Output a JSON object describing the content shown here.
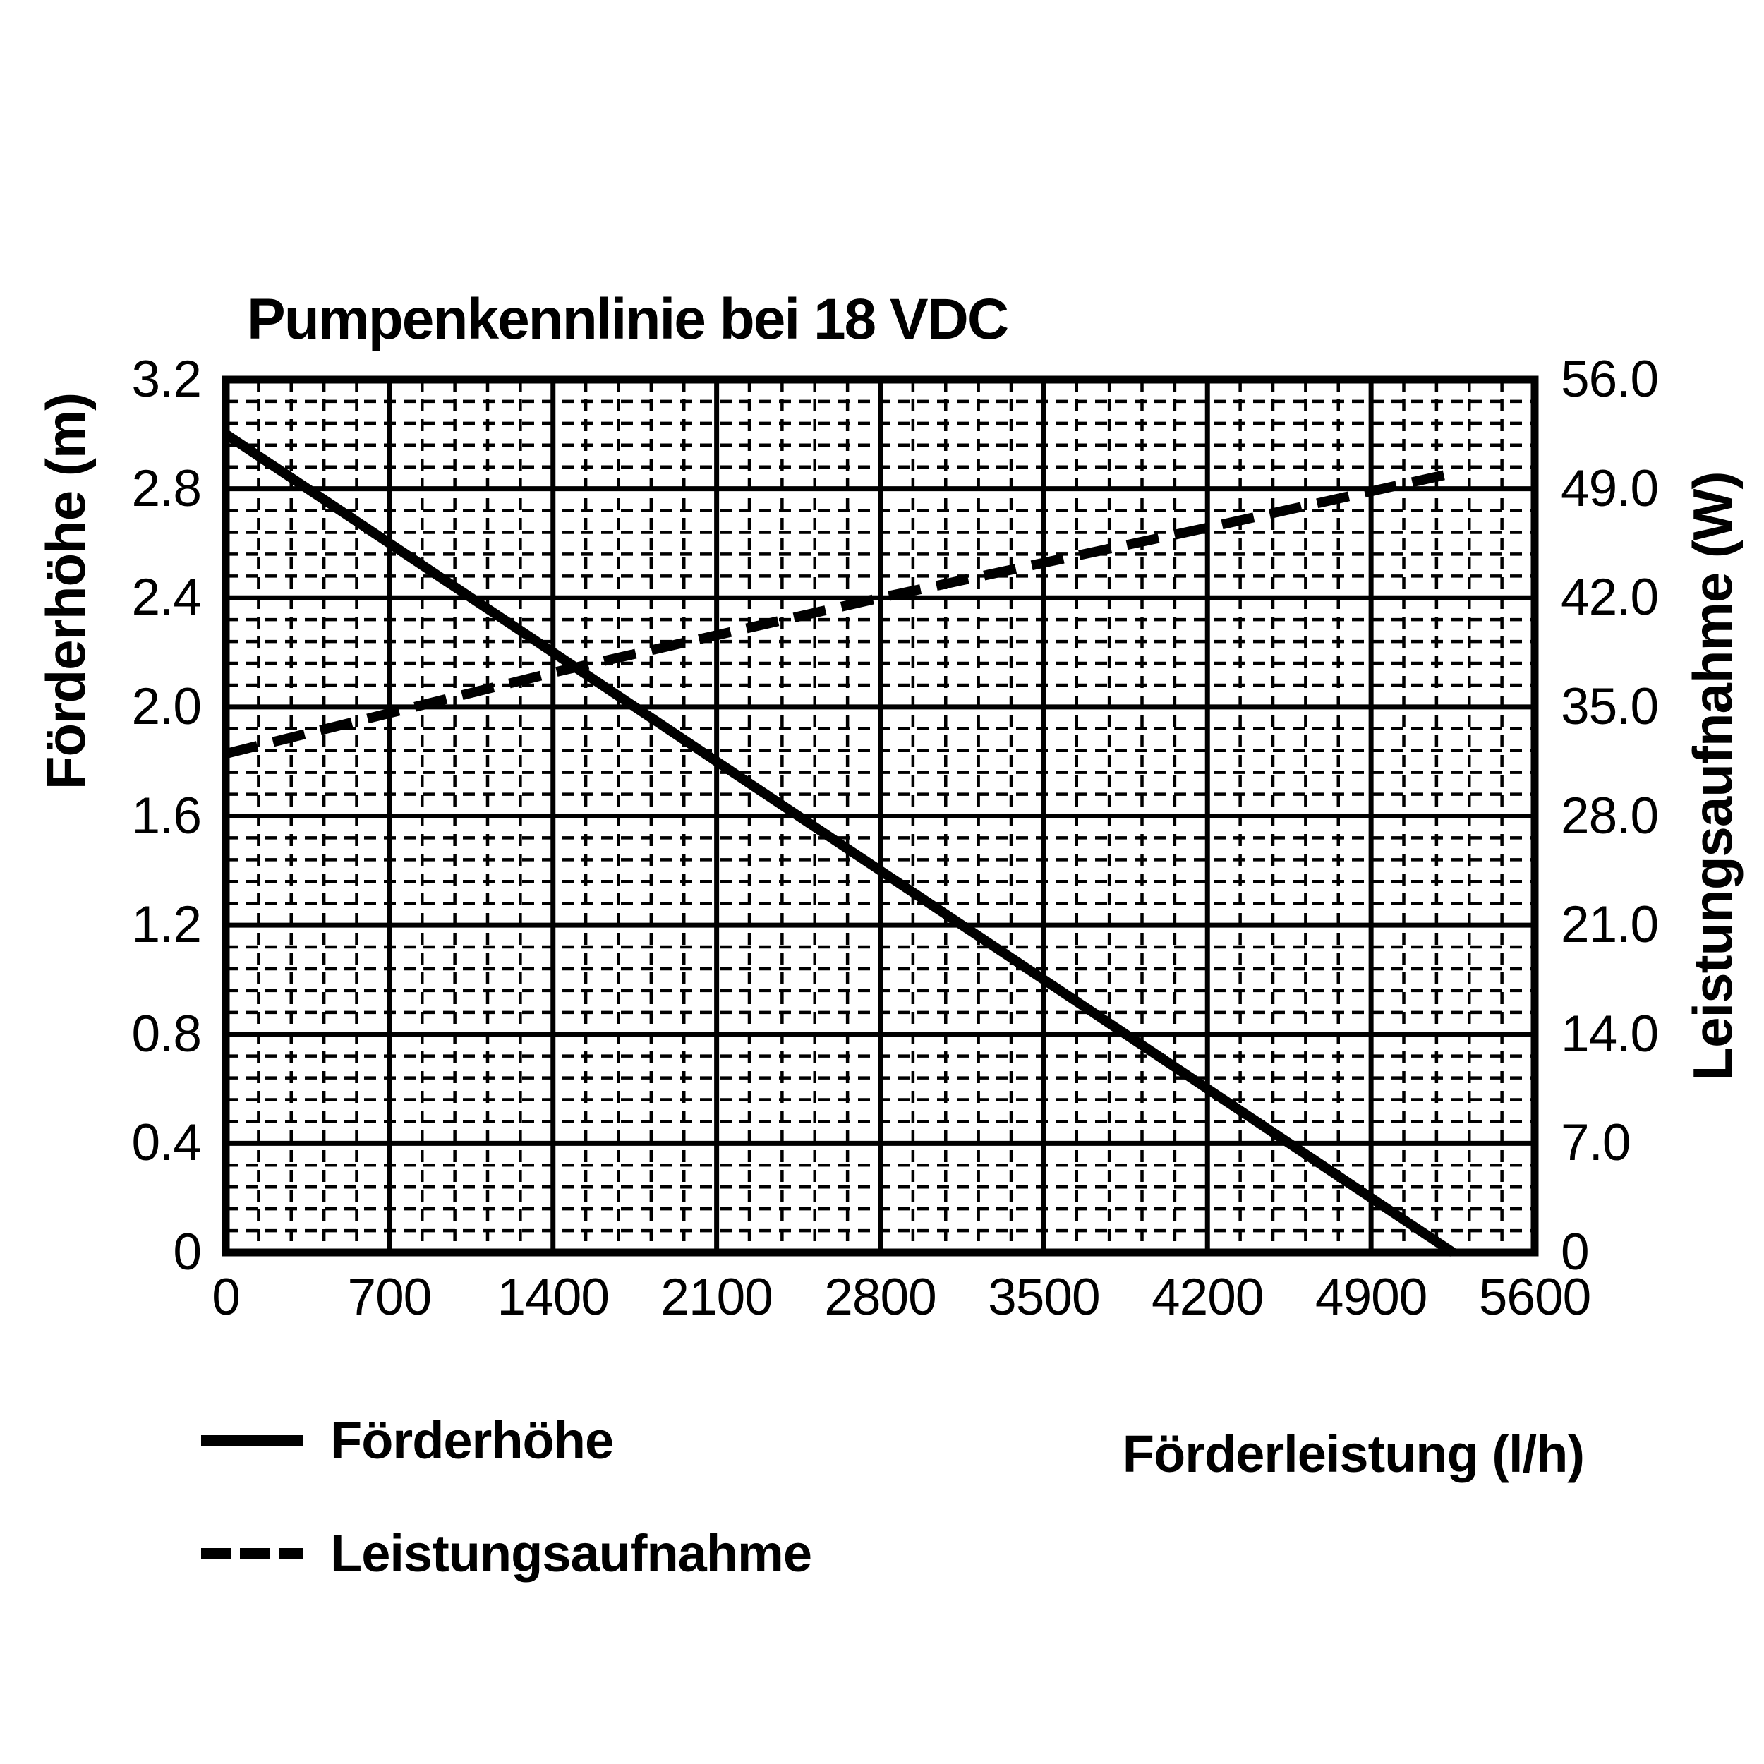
{
  "page": {
    "background": "#ffffff",
    "foreground": "#000000"
  },
  "chart": {
    "title": "Pumpenkennlinie bei 18 VDC",
    "x_axis_title": "Förderleistung (l/h)",
    "y_left_axis_title": "Förderhöhe (m)",
    "y_right_axis_title": "Leistungsaufnahme (W)"
  },
  "legend": {
    "items": [
      {
        "label": "Förderhöhe",
        "line_style": "solid"
      },
      {
        "label": "Leistungsaufnahme",
        "line_style": "dashed"
      }
    ]
  },
  "chart_data": {
    "type": "line",
    "title": "Pumpenkennlinie bei 18 VDC",
    "xlabel": "Förderleistung (l/h)",
    "x_range": [
      0,
      5600
    ],
    "x_ticks": [
      "0",
      "700",
      "1400",
      "2100",
      "2800",
      "3500",
      "4200",
      "4900",
      "5600"
    ],
    "x_minor_divisions": 5,
    "y_left": {
      "label": "Förderhöhe (m)",
      "unit": "m",
      "range": [
        0,
        3.2
      ],
      "ticks": [
        "3.2",
        "2.8",
        "2.4",
        "2.0",
        "1.6",
        "1.2",
        "0.8",
        "0.4",
        "0"
      ],
      "minor_divisions": 5
    },
    "y_right": {
      "label": "Leistungsaufnahme (W)",
      "unit": "W",
      "range": [
        0,
        56
      ],
      "ticks": [
        "56.0",
        "49.0",
        "42.0",
        "35.0",
        "28.0",
        "21.0",
        "14.0",
        "7.0",
        "0"
      ]
    },
    "grid": {
      "major": "solid",
      "minor": "dashed"
    },
    "legend_position": "below-left",
    "line_color": "#000000",
    "series": [
      {
        "name": "Förderhöhe",
        "axis": "left",
        "line_style": "solid",
        "points": [
          [
            0,
            3.0
          ],
          [
            5250,
            0.0
          ]
        ]
      },
      {
        "name": "Leistungsaufnahme",
        "axis": "right",
        "line_style": "dashed",
        "points": [
          [
            0,
            32.0
          ],
          [
            1400,
            37.2
          ],
          [
            2800,
            42.0
          ],
          [
            4200,
            46.5
          ],
          [
            5250,
            50.0
          ]
        ]
      }
    ]
  }
}
